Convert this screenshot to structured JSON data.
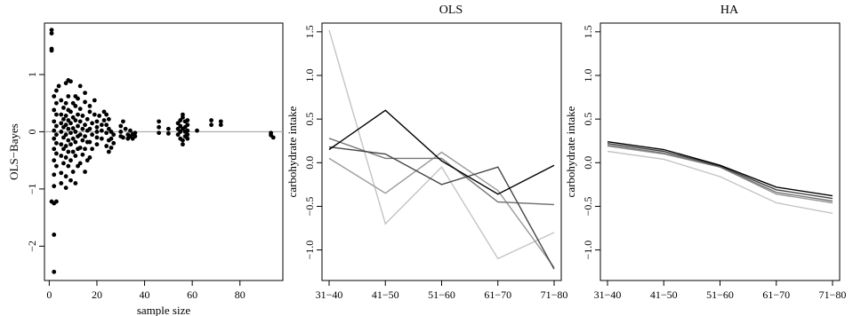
{
  "chart_data": [
    {
      "type": "scatter",
      "title": "",
      "xlabel": "sample size",
      "ylabel": "OLS−Bayes",
      "xlim": [
        -2,
        98
      ],
      "ylim": [
        -2.6,
        1.9
      ],
      "xticks": [
        0,
        20,
        40,
        60,
        80
      ],
      "yticks": [
        -2,
        -1,
        0,
        1
      ],
      "reference_line": {
        "y": 0,
        "color": "#aaaaaa"
      },
      "points": [
        [
          1,
          1.78
        ],
        [
          1,
          1.72
        ],
        [
          1,
          1.45
        ],
        [
          1,
          1.42
        ],
        [
          2,
          -2.45
        ],
        [
          2,
          -1.8
        ],
        [
          2,
          -1.25
        ],
        [
          1,
          -1.22
        ],
        [
          3,
          -1.22
        ],
        [
          2,
          -0.95
        ],
        [
          2,
          -0.75
        ],
        [
          3,
          -0.6
        ],
        [
          2,
          -0.5
        ],
        [
          3,
          -0.38
        ],
        [
          2,
          -0.3
        ],
        [
          3,
          -0.2
        ],
        [
          2,
          -0.12
        ],
        [
          3,
          -0.05
        ],
        [
          2,
          0.02
        ],
        [
          3,
          0.1
        ],
        [
          2,
          0.18
        ],
        [
          3,
          0.3
        ],
        [
          2,
          0.38
        ],
        [
          3,
          0.5
        ],
        [
          2,
          0.62
        ],
        [
          3,
          0.72
        ],
        [
          4,
          0.8
        ],
        [
          5,
          -0.9
        ],
        [
          5,
          -0.72
        ],
        [
          6,
          -0.55
        ],
        [
          5,
          -0.42
        ],
        [
          6,
          -0.3
        ],
        [
          5,
          -0.22
        ],
        [
          6,
          -0.1
        ],
        [
          5,
          0.0
        ],
        [
          6,
          0.08
        ],
        [
          5,
          0.15
        ],
        [
          6,
          0.22
        ],
        [
          5,
          0.3
        ],
        [
          6,
          0.42
        ],
        [
          5,
          0.55
        ],
        [
          7,
          -0.98
        ],
        [
          7,
          -0.78
        ],
        [
          8,
          -0.6
        ],
        [
          7,
          -0.45
        ],
        [
          8,
          -0.35
        ],
        [
          7,
          -0.25
        ],
        [
          8,
          -0.15
        ],
        [
          7,
          -0.05
        ],
        [
          8,
          0.05
        ],
        [
          7,
          0.12
        ],
        [
          8,
          0.2
        ],
        [
          7,
          0.28
        ],
        [
          8,
          0.38
        ],
        [
          7,
          0.5
        ],
        [
          8,
          0.62
        ],
        [
          7,
          0.85
        ],
        [
          8,
          0.9
        ],
        [
          9,
          0.88
        ],
        [
          9,
          -0.85
        ],
        [
          10,
          -0.7
        ],
        [
          9,
          -0.5
        ],
        [
          10,
          -0.35
        ],
        [
          9,
          -0.22
        ],
        [
          10,
          -0.12
        ],
        [
          9,
          -0.02
        ],
        [
          10,
          0.06
        ],
        [
          9,
          0.15
        ],
        [
          10,
          0.25
        ],
        [
          9,
          0.35
        ],
        [
          10,
          0.5
        ],
        [
          11,
          0.62
        ],
        [
          11,
          -0.9
        ],
        [
          12,
          -0.6
        ],
        [
          11,
          -0.42
        ],
        [
          12,
          -0.3
        ],
        [
          11,
          -0.18
        ],
        [
          12,
          -0.08
        ],
        [
          11,
          0.0
        ],
        [
          12,
          0.1
        ],
        [
          11,
          0.2
        ],
        [
          12,
          0.3
        ],
        [
          11,
          0.45
        ],
        [
          12,
          0.58
        ],
        [
          13,
          0.8
        ],
        [
          13,
          -0.55
        ],
        [
          14,
          -0.4
        ],
        [
          13,
          -0.28
        ],
        [
          14,
          -0.15
        ],
        [
          13,
          -0.05
        ],
        [
          14,
          0.05
        ],
        [
          13,
          0.18
        ],
        [
          14,
          0.28
        ],
        [
          13,
          0.4
        ],
        [
          15,
          0.52
        ],
        [
          15,
          0.68
        ],
        [
          15,
          -0.7
        ],
        [
          16,
          -0.5
        ],
        [
          15,
          -0.3
        ],
        [
          16,
          -0.18
        ],
        [
          15,
          -0.08
        ],
        [
          16,
          0.02
        ],
        [
          15,
          0.12
        ],
        [
          16,
          0.22
        ],
        [
          17,
          0.35
        ],
        [
          17,
          0.45
        ],
        [
          17,
          -0.45
        ],
        [
          18,
          -0.3
        ],
        [
          17,
          -0.18
        ],
        [
          18,
          -0.05
        ],
        [
          17,
          0.05
        ],
        [
          18,
          0.15
        ],
        [
          19,
          0.3
        ],
        [
          19,
          0.55
        ],
        [
          20,
          -0.22
        ],
        [
          20,
          -0.1
        ],
        [
          20,
          0.0
        ],
        [
          20,
          0.08
        ],
        [
          20,
          0.18
        ],
        [
          21,
          0.28
        ],
        [
          22,
          -0.12
        ],
        [
          22,
          0.02
        ],
        [
          22,
          0.12
        ],
        [
          23,
          0.2
        ],
        [
          23,
          0.35
        ],
        [
          24,
          0.3
        ],
        [
          24,
          0.12
        ],
        [
          24,
          -0.02
        ],
        [
          24,
          -0.25
        ],
        [
          25,
          -0.35
        ],
        [
          25,
          -0.15
        ],
        [
          25,
          0.05
        ],
        [
          25,
          0.22
        ],
        [
          26,
          -0.12
        ],
        [
          26,
          -0.28
        ],
        [
          26,
          0.0
        ],
        [
          27,
          -0.2
        ],
        [
          27,
          -0.05
        ],
        [
          30,
          0.1
        ],
        [
          30,
          0.0
        ],
        [
          30,
          -0.08
        ],
        [
          31,
          0.18
        ],
        [
          31,
          -0.1
        ],
        [
          32,
          0.05
        ],
        [
          33,
          -0.05
        ],
        [
          33,
          -0.12
        ],
        [
          34,
          0.02
        ],
        [
          34,
          -0.08
        ],
        [
          35,
          -0.04
        ],
        [
          35,
          -0.12
        ],
        [
          36,
          -0.02
        ],
        [
          36,
          -0.08
        ],
        [
          46,
          0.18
        ],
        [
          46,
          0.08
        ],
        [
          46,
          -0.02
        ],
        [
          50,
          0.05
        ],
        [
          50,
          -0.03
        ],
        [
          54,
          0.15
        ],
        [
          54,
          0.05
        ],
        [
          54,
          -0.05
        ],
        [
          55,
          0.2
        ],
        [
          55,
          0.1
        ],
        [
          55,
          -0.12
        ],
        [
          56,
          0.25
        ],
        [
          56,
          0.3
        ],
        [
          56,
          -0.22
        ],
        [
          56,
          -0.15
        ],
        [
          57,
          0.18
        ],
        [
          57,
          0.08
        ],
        [
          57,
          0.0
        ],
        [
          57,
          -0.08
        ],
        [
          58,
          0.2
        ],
        [
          58,
          0.12
        ],
        [
          58,
          0.02
        ],
        [
          58,
          -0.05
        ],
        [
          58,
          -0.12
        ],
        [
          56,
          0.05
        ],
        [
          55,
          0.0
        ],
        [
          62,
          0.02
        ],
        [
          68,
          0.2
        ],
        [
          68,
          0.12
        ],
        [
          72,
          0.18
        ],
        [
          72,
          0.12
        ],
        [
          93,
          -0.02
        ],
        [
          93,
          -0.06
        ],
        [
          94,
          -0.1
        ]
      ]
    },
    {
      "type": "line",
      "title": "OLS",
      "xlabel": "",
      "ylabel": "carbohydrate intake",
      "categories": [
        "31−40",
        "41−50",
        "51−60",
        "61−70",
        "71−80"
      ],
      "ylim": [
        -1.35,
        1.6
      ],
      "yticks": [
        -1.0,
        -0.5,
        0.0,
        0.5,
        1.0,
        1.5
      ],
      "ytick_labels": [
        "−1.0",
        "−0.5",
        "0.0",
        "0.5",
        "1.0",
        "1.5"
      ],
      "series": [
        {
          "color": "#000000",
          "values": [
            0.15,
            0.6,
            0.02,
            -0.36,
            -0.03
          ]
        },
        {
          "color": "#444444",
          "values": [
            0.18,
            0.1,
            -0.25,
            -0.05,
            -1.22
          ]
        },
        {
          "color": "#777777",
          "values": [
            0.28,
            0.05,
            0.05,
            -0.45,
            -0.48
          ]
        },
        {
          "color": "#999999",
          "values": [
            0.05,
            -0.35,
            0.12,
            -0.32,
            -1.2
          ]
        },
        {
          "color": "#c4c4c4",
          "values": [
            1.52,
            -0.7,
            -0.05,
            -1.1,
            -0.8
          ]
        }
      ]
    },
    {
      "type": "line",
      "title": "HA",
      "xlabel": "",
      "ylabel": "carbohydrate intake",
      "categories": [
        "31−40",
        "41−50",
        "51−60",
        "61−70",
        "71−80"
      ],
      "ylim": [
        -1.35,
        1.6
      ],
      "yticks": [
        -1.0,
        -0.5,
        0.0,
        0.5,
        1.0,
        1.5
      ],
      "ytick_labels": [
        "−1.0",
        "−0.5",
        "0.0",
        "0.5",
        "1.0",
        "1.5"
      ],
      "series": [
        {
          "color": "#000000",
          "values": [
            0.24,
            0.15,
            -0.03,
            -0.28,
            -0.38
          ]
        },
        {
          "color": "#444444",
          "values": [
            0.22,
            0.13,
            -0.04,
            -0.31,
            -0.41
          ]
        },
        {
          "color": "#777777",
          "values": [
            0.2,
            0.11,
            -0.05,
            -0.34,
            -0.44
          ]
        },
        {
          "color": "#999999",
          "values": [
            0.19,
            0.1,
            -0.05,
            -0.36,
            -0.46
          ]
        },
        {
          "color": "#c4c4c4",
          "values": [
            0.13,
            0.04,
            -0.16,
            -0.46,
            -0.58
          ]
        }
      ]
    }
  ]
}
